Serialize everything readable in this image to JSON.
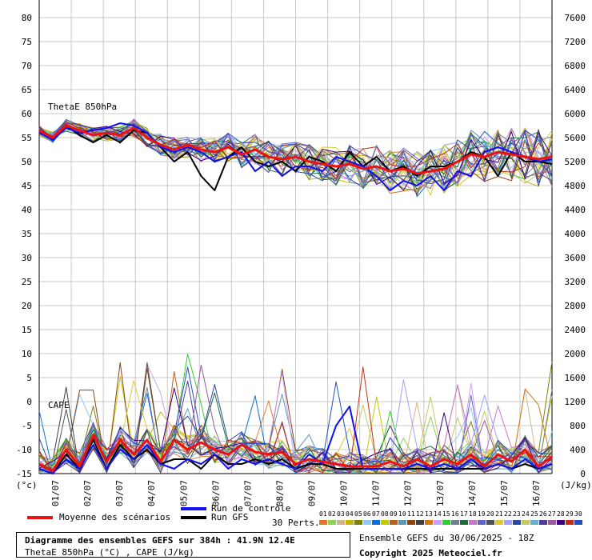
{
  "chart_data": {
    "type": "line",
    "left_axis": {
      "ticks": [
        80,
        75,
        70,
        65,
        60,
        55,
        50,
        45,
        40,
        35,
        30,
        25,
        20,
        15,
        10,
        5,
        0,
        -5,
        -10,
        -15
      ],
      "unit_label": "(°c)",
      "range": [
        -15,
        80
      ]
    },
    "right_axis": {
      "ticks": [
        7600,
        7200,
        6800,
        6400,
        6000,
        5600,
        5200,
        4800,
        4400,
        4000,
        3600,
        3200,
        2800,
        2400,
        2000,
        1600,
        1200,
        800,
        400,
        0
      ],
      "unit_label": "(J/kg)",
      "range": [
        0,
        7600
      ]
    },
    "x_tick_labels": [
      "01/07",
      "02/07",
      "03/07",
      "04/07",
      "05/07",
      "06/07",
      "07/07",
      "08/07",
      "09/07",
      "10/07",
      "11/07",
      "12/07",
      "13/07",
      "14/07",
      "15/07",
      "16/07"
    ],
    "section_labels": {
      "thetae": "ThetaE 850hPa",
      "cape": "CAPE"
    },
    "thetae_mean": [
      56.5,
      55,
      57.5,
      56.5,
      55.5,
      56,
      55.5,
      57,
      55,
      53.5,
      52.5,
      53.5,
      52.5,
      52,
      53,
      51.5,
      52.5,
      51,
      50.5,
      51,
      50,
      49.5,
      49,
      49.5,
      48.5,
      49,
      48,
      48.5,
      47.5,
      48,
      48.5,
      50,
      51.5,
      51,
      52,
      51.5,
      51,
      50.5,
      51
    ],
    "thetae_control": [
      56,
      54.5,
      57,
      56,
      56.5,
      57,
      58,
      57.5,
      56,
      53,
      52,
      53,
      52,
      50,
      51,
      52,
      48,
      50,
      47,
      49,
      49,
      48,
      51,
      50,
      49,
      47,
      44,
      46,
      45,
      47,
      44,
      48,
      47,
      52,
      53,
      52,
      51,
      50,
      50.5
    ],
    "thetae_run": [
      56.5,
      55,
      57.5,
      55.5,
      54,
      55.5,
      54,
      56.5,
      56,
      53,
      50,
      52,
      47,
      44,
      51,
      53,
      50,
      49,
      50,
      48,
      51,
      50,
      48,
      52,
      49,
      51,
      48,
      49,
      47,
      49,
      49,
      50,
      52,
      51,
      47,
      52,
      50,
      50,
      49.5
    ],
    "cape_mean": [
      -13,
      -14.5,
      -10,
      -13.5,
      -7,
      -12.5,
      -8,
      -11,
      -8,
      -12.5,
      -8,
      -10,
      -8.5,
      -10,
      -11,
      -9,
      -10.5,
      -11,
      -10.5,
      -13,
      -12,
      -12.5,
      -13,
      -13.5,
      -13.5,
      -13.5,
      -12.5,
      -13.5,
      -12,
      -13.5,
      -12,
      -13,
      -11,
      -13.5,
      -11,
      -12.5,
      -10,
      -13.5,
      -11.5
    ],
    "cape_control": [
      -14,
      -15,
      -12,
      -14,
      -9,
      -14,
      -10,
      -12,
      -9,
      -13,
      -14,
      -12,
      -13,
      -11,
      -14,
      -12,
      -13,
      -12,
      -13,
      -14,
      -11,
      -13,
      -5,
      -1,
      -14,
      -14,
      -14,
      -14,
      -13,
      -14,
      -13,
      -14,
      -12,
      -14,
      -13,
      -14,
      -12,
      -14,
      -13
    ],
    "cape_run": [
      -14,
      -15,
      -11,
      -14,
      -8,
      -14,
      -9,
      -12,
      -10,
      -13,
      -12,
      -12,
      -14,
      -11,
      -13,
      -13,
      -12,
      -13,
      -12,
      -14,
      -13,
      -13,
      -14,
      -14,
      -14,
      -14,
      -14,
      -14,
      -14,
      -14,
      -14,
      -14,
      -14,
      -14,
      -13,
      -14,
      -13,
      -14,
      -13
    ]
  },
  "legend": {
    "mean_label": "Moyenne des scénarios",
    "control_label": "Run de contrôle",
    "run_label": "Run GFS",
    "perts_label": "30 Perts.",
    "pert_numbers": [
      "01",
      "02",
      "03",
      "04",
      "05",
      "06",
      "07",
      "08",
      "09",
      "10",
      "11",
      "12",
      "13",
      "14",
      "15",
      "16",
      "17",
      "18",
      "19",
      "20",
      "21",
      "22",
      "23",
      "24",
      "25",
      "26",
      "27",
      "28",
      "29",
      "30"
    ],
    "pert_colors": [
      "#e07a2a",
      "#8bd15a",
      "#d2b48c",
      "#c8b400",
      "#808000",
      "#90c8ff",
      "#0a6fd8",
      "#c8c800",
      "#b4641e",
      "#5a9ab4",
      "#8b4513",
      "#404040",
      "#d27814",
      "#c8a0ff",
      "#32cd32",
      "#708090",
      "#1e6e3c",
      "#c878c8",
      "#6464c8",
      "#505050",
      "#e0c830",
      "#a0a0ff",
      "#284ba0",
      "#c8c864",
      "#64b4c8",
      "#503c96",
      "#9a5aa0",
      "#400080",
      "#c03018",
      "#2050c0"
    ],
    "mean_color": "#ee1111",
    "control_color": "#1111ee",
    "run_color": "#000000"
  },
  "title": {
    "line1": "Diagramme des ensembles GEFS sur 384h : 41.9N 12.4E",
    "line2": "ThetaE 850hPa (°C) , CAPE (J/kg)"
  },
  "run_info": "Ensemble GEFS du 30/06/2025 - 18Z",
  "copyright": "Copyright 2025 Meteociel.fr"
}
